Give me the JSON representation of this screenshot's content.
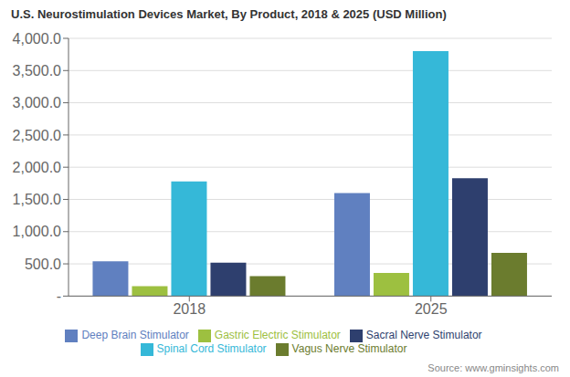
{
  "chart_data": {
    "type": "bar",
    "title": "U.S. Neurostimulation Devices Market, By Product, 2018 & 2025 (USD Million)",
    "categories": [
      "2018",
      "2025"
    ],
    "series": [
      {
        "name": "Deep Brain Stimulator",
        "color": "#6080c0",
        "values": [
          540,
          1600
        ]
      },
      {
        "name": "Gastric Electric Stimulator",
        "color": "#9dc040",
        "values": [
          155,
          360
        ]
      },
      {
        "name": "Spinal Cord Stimulator",
        "color": "#35b8d8",
        "values": [
          1780,
          3800
        ]
      },
      {
        "name": "Sacral Nerve Stimulator",
        "color": "#2e3f6e",
        "values": [
          520,
          1830
        ]
      },
      {
        "name": "Vagus Nerve Stimulator",
        "color": "#6b7c2e",
        "values": [
          310,
          670
        ]
      }
    ],
    "ylim": [
      0,
      4000
    ],
    "yticks": [
      {
        "value": 0,
        "label": "-"
      },
      {
        "value": 500,
        "label": "500.0"
      },
      {
        "value": 1000,
        "label": "1,000.0"
      },
      {
        "value": 1500,
        "label": "1,500.0"
      },
      {
        "value": 2000,
        "label": "2,000.0"
      },
      {
        "value": 2500,
        "label": "2,500.0"
      },
      {
        "value": 3000,
        "label": "3,000.0"
      },
      {
        "value": 3500,
        "label": "3,500.0"
      },
      {
        "value": 4000,
        "label": "4,000.0"
      }
    ],
    "grid": true,
    "legend": "bottom",
    "annotations": [
      "Source: www.gminsights.com"
    ]
  }
}
